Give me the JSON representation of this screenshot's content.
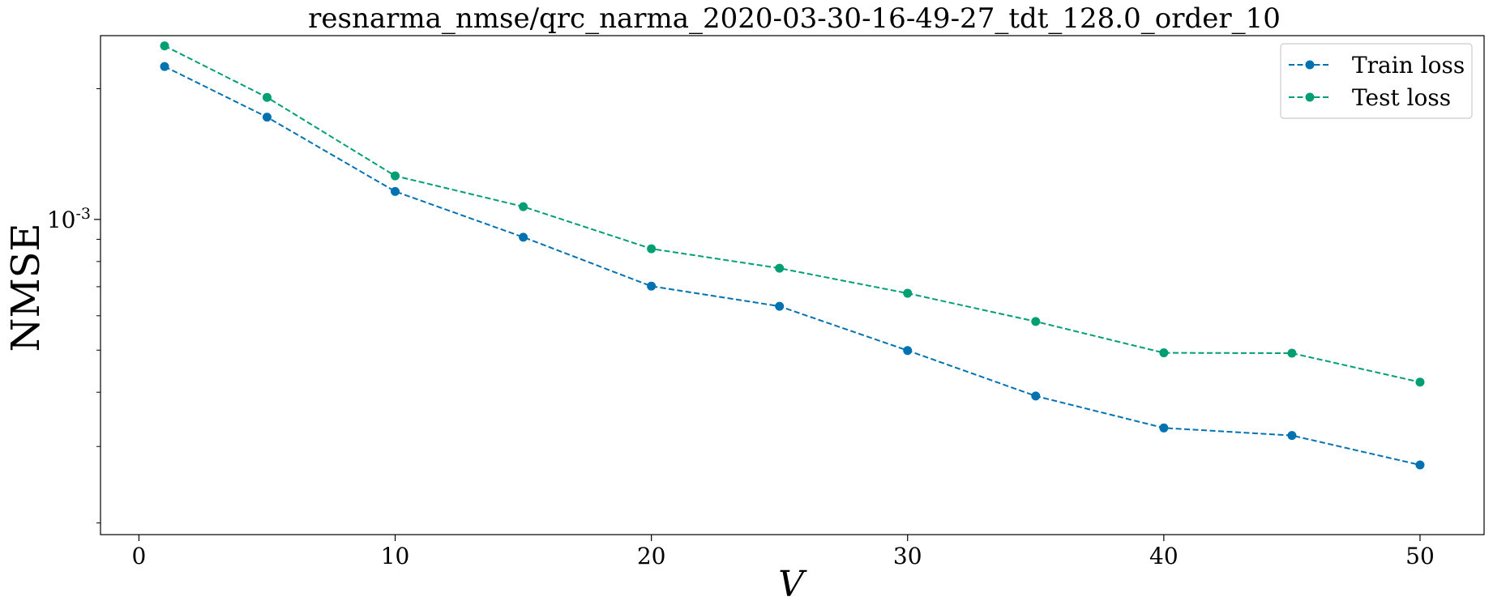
{
  "chart_data": {
    "type": "line",
    "title": "resnarma_nmse/qrc_narma_2020-03-30-16-49-27_tdt_128.0_order_10",
    "xlabel": "V",
    "ylabel": "NMSE",
    "xlim": [
      -1.5,
      52.5
    ],
    "x_ticks": [
      0,
      10,
      20,
      30,
      40,
      50
    ],
    "x_tick_labels": [
      "0",
      "10",
      "20",
      "30",
      "40",
      "50"
    ],
    "y_scale": "log",
    "ylim": [
      0.000188,
      0.00265
    ],
    "y_major_ticks": [
      0.001
    ],
    "y_major_tick_labels": [
      {
        "base": "10",
        "exp": "-3"
      }
    ],
    "y_minor_ticks": [
      0.0002,
      0.0003,
      0.0004,
      0.0005,
      0.0006,
      0.0007,
      0.0008,
      0.0009,
      0.002
    ],
    "grid": false,
    "legend_position": "top-right",
    "x": [
      1,
      5,
      10,
      15,
      20,
      25,
      30,
      35,
      40,
      45,
      50
    ],
    "series": [
      {
        "name": "Train loss",
        "color": "#0072B2",
        "line_style": "dashed",
        "marker": "circle",
        "values": [
          0.00225,
          0.00172,
          0.00116,
          0.00091,
          0.000702,
          0.000631,
          0.000499,
          0.000392,
          0.000331,
          0.000318,
          0.000272
        ]
      },
      {
        "name": "Test loss",
        "color": "#009E73",
        "line_style": "dashed",
        "marker": "circle",
        "values": [
          0.00251,
          0.00191,
          0.00126,
          0.00107,
          0.000856,
          0.000772,
          0.000676,
          0.000582,
          0.000493,
          0.000492,
          0.000422
        ]
      }
    ]
  }
}
